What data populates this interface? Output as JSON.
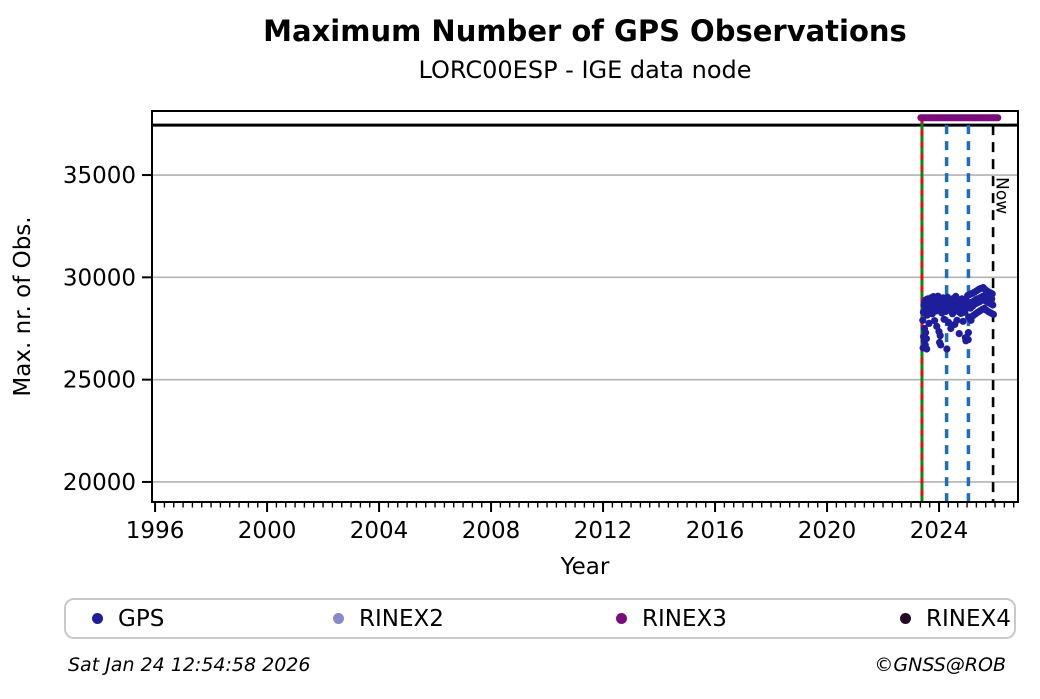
{
  "header": {
    "title": "Maximum Number of GPS Observations",
    "subtitle": "LORC00ESP - IGE data node"
  },
  "footer": {
    "timestamp": "Sat Jan 24 12:54:58 2026",
    "credit": "©GNSS@ROB"
  },
  "legend": {
    "items": [
      {
        "label": "GPS",
        "color": "#1e1e9c"
      },
      {
        "label": "RINEX2",
        "color": "#8888cf"
      },
      {
        "label": "RINEX3",
        "color": "#7a0c7e"
      },
      {
        "label": "RINEX4",
        "color": "#260b28"
      }
    ]
  },
  "chart_data": {
    "type": "scatter",
    "title": "Maximum Number of GPS Observations",
    "subtitle": "LORC00ESP - IGE data node",
    "xlabel": "Year",
    "ylabel": "Max. nr. of Obs.",
    "xlim": [
      1995.89,
      2026.82
    ],
    "ylim": [
      19020,
      38130
    ],
    "xticks": [
      1996,
      2000,
      2004,
      2008,
      2012,
      2016,
      2020,
      2024
    ],
    "x_minor_tick_step": 0.33333,
    "yticks": [
      20000,
      25000,
      30000,
      35000
    ],
    "grid": "horizontal-only",
    "gridline_color": "#b3b3b3",
    "legend_position": "bottom",
    "series": [
      {
        "name": "GPS",
        "type": "scatter",
        "color": "#1e1e9c",
        "points": [
          [
            2023.42,
            27900
          ],
          [
            2023.43,
            26550
          ],
          [
            2023.44,
            28300
          ],
          [
            2023.45,
            27100
          ],
          [
            2023.46,
            28650
          ],
          [
            2023.47,
            26900
          ],
          [
            2023.48,
            27500
          ],
          [
            2023.49,
            28800
          ],
          [
            2023.5,
            28250
          ],
          [
            2023.51,
            26700
          ],
          [
            2023.52,
            27300
          ],
          [
            2023.53,
            28900
          ],
          [
            2023.54,
            28500
          ],
          [
            2023.55,
            27000
          ],
          [
            2023.56,
            26500
          ],
          [
            2023.57,
            28150
          ],
          [
            2023.58,
            28700
          ],
          [
            2023.6,
            28950
          ],
          [
            2023.62,
            28400
          ],
          [
            2023.64,
            27750
          ],
          [
            2023.66,
            28600
          ],
          [
            2023.68,
            28850
          ],
          [
            2023.7,
            28450
          ],
          [
            2023.72,
            29000
          ],
          [
            2023.74,
            28620
          ],
          [
            2023.76,
            28220
          ],
          [
            2023.78,
            28870
          ],
          [
            2023.8,
            29060
          ],
          [
            2023.82,
            28480
          ],
          [
            2023.84,
            27880
          ],
          [
            2023.86,
            28730
          ],
          [
            2023.88,
            28960
          ],
          [
            2023.9,
            28360
          ],
          [
            2023.92,
            27600
          ],
          [
            2023.94,
            28790
          ],
          [
            2023.96,
            29080
          ],
          [
            2023.98,
            28520
          ],
          [
            2024.0,
            27350
          ],
          [
            2024.02,
            26820
          ],
          [
            2024.04,
            27150
          ],
          [
            2024.06,
            26700
          ],
          [
            2024.08,
            28900
          ],
          [
            2024.1,
            28260
          ],
          [
            2024.12,
            28750
          ],
          [
            2024.14,
            29000
          ],
          [
            2024.16,
            28440
          ],
          [
            2024.18,
            27950
          ],
          [
            2024.2,
            28690
          ],
          [
            2024.22,
            28880
          ],
          [
            2024.24,
            28330
          ],
          [
            2024.26,
            28770
          ],
          [
            2024.28,
            26500
          ],
          [
            2024.3,
            29030
          ],
          [
            2024.32,
            28550
          ],
          [
            2024.34,
            27800
          ],
          [
            2024.36,
            28670
          ],
          [
            2024.38,
            28940
          ],
          [
            2024.4,
            28390
          ],
          [
            2024.42,
            27500
          ],
          [
            2024.44,
            28600
          ],
          [
            2024.46,
            28850
          ],
          [
            2024.48,
            28220
          ],
          [
            2024.5,
            28710
          ],
          [
            2024.52,
            28970
          ],
          [
            2024.54,
            28470
          ],
          [
            2024.56,
            27700
          ],
          [
            2024.58,
            28820
          ],
          [
            2024.6,
            29070
          ],
          [
            2024.62,
            28530
          ],
          [
            2024.64,
            27900
          ],
          [
            2024.66,
            28650
          ],
          [
            2024.68,
            28900
          ],
          [
            2024.7,
            28320
          ],
          [
            2024.72,
            27250
          ],
          [
            2024.74,
            28580
          ],
          [
            2024.76,
            28840
          ],
          [
            2024.78,
            28240
          ],
          [
            2024.8,
            28700
          ],
          [
            2024.82,
            28950
          ],
          [
            2024.84,
            28420
          ],
          [
            2024.86,
            27850
          ],
          [
            2024.88,
            28610
          ],
          [
            2024.9,
            28870
          ],
          [
            2024.92,
            28290
          ],
          [
            2024.94,
            27050
          ],
          [
            2024.96,
            26900
          ],
          [
            2024.98,
            28560
          ],
          [
            2025.0,
            28810
          ],
          [
            2025.02,
            29110
          ],
          [
            2025.04,
            26950
          ],
          [
            2025.05,
            27300
          ],
          [
            2025.06,
            28060
          ],
          [
            2025.08,
            28730
          ],
          [
            2025.1,
            29160
          ],
          [
            2025.12,
            28490
          ],
          [
            2025.14,
            27900
          ],
          [
            2025.16,
            28780
          ],
          [
            2025.18,
            29210
          ],
          [
            2025.2,
            28590
          ],
          [
            2025.22,
            28130
          ],
          [
            2025.24,
            28840
          ],
          [
            2025.26,
            29270
          ],
          [
            2025.28,
            28690
          ],
          [
            2025.3,
            28210
          ],
          [
            2025.32,
            28910
          ],
          [
            2025.34,
            29340
          ],
          [
            2025.36,
            28750
          ],
          [
            2025.38,
            28290
          ],
          [
            2025.4,
            28960
          ],
          [
            2025.42,
            29410
          ],
          [
            2025.44,
            28800
          ],
          [
            2025.46,
            28360
          ],
          [
            2025.48,
            29010
          ],
          [
            2025.5,
            29460
          ],
          [
            2025.52,
            28870
          ],
          [
            2025.54,
            28430
          ],
          [
            2025.56,
            29070
          ],
          [
            2025.58,
            29500
          ],
          [
            2025.6,
            28920
          ],
          [
            2025.62,
            28480
          ],
          [
            2025.64,
            29120
          ],
          [
            2025.66,
            29390
          ],
          [
            2025.68,
            28830
          ],
          [
            2025.7,
            28390
          ],
          [
            2025.72,
            29040
          ],
          [
            2025.74,
            29310
          ],
          [
            2025.76,
            28770
          ],
          [
            2025.78,
            28310
          ],
          [
            2025.8,
            28990
          ],
          [
            2025.82,
            29250
          ],
          [
            2025.84,
            28710
          ],
          [
            2025.86,
            28250
          ],
          [
            2025.88,
            28940
          ],
          [
            2025.9,
            29190
          ],
          [
            2025.92,
            28650
          ],
          [
            2025.94,
            28190
          ]
        ]
      },
      {
        "name": "RINEX2",
        "type": "scatter",
        "color": "#8888cf",
        "points": []
      },
      {
        "name": "RINEX3",
        "type": "thick-line",
        "color": "#7a0c7e",
        "y": 37800,
        "x_start": 2023.35,
        "x_end": 2026.1
      },
      {
        "name": "RINEX4",
        "type": "scatter",
        "color": "#260b28",
        "points": []
      }
    ],
    "reference_lines": {
      "horizontal": [
        {
          "value": 37440,
          "color": "#000000",
          "style": "solid",
          "width": 3,
          "name": "max-observations-line"
        }
      ],
      "vertical": [
        {
          "x": 2023.39,
          "color": "#0a8a0a",
          "style": "solid",
          "width": 3,
          "top_value": 37800,
          "name": "event-line-green"
        },
        {
          "x": 2023.39,
          "color": "#dd1111",
          "style": "dashed",
          "dash": [
            6,
            6
          ],
          "width": 3,
          "top_value": 37800,
          "name": "event-line-red"
        },
        {
          "x": 2024.27,
          "color": "#1b6ec2",
          "style": "dashed",
          "dash": [
            9,
            7
          ],
          "width": 3.5,
          "top_value": 37440,
          "name": "event-line-blue-1"
        },
        {
          "x": 2025.05,
          "color": "#1b6ec2",
          "style": "dashed",
          "dash": [
            9,
            7
          ],
          "width": 3.5,
          "top_value": 37440,
          "name": "event-line-blue-2"
        },
        {
          "x": 2025.93,
          "color": "#000000",
          "style": "dashed",
          "dash": [
            10,
            7
          ],
          "width": 2.6,
          "top_value": 37440,
          "name": "now-line",
          "label": "Now"
        }
      ]
    },
    "annotations": [
      {
        "text": "Now",
        "x": 2025.93,
        "rotation": 90
      }
    ]
  }
}
